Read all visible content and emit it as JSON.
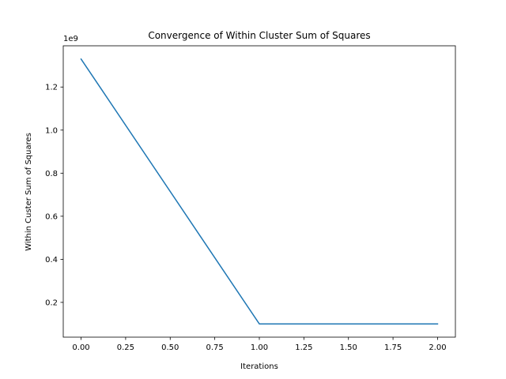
{
  "chart_data": {
    "type": "line",
    "title": "Convergence of Within Cluster Sum of Squares",
    "xlabel": "Iterations",
    "ylabel": "Within Custer Sum of Squares",
    "y_offset_label": "1e9",
    "series": [
      {
        "x": [
          0,
          1,
          2
        ],
        "values": [
          1.33,
          0.1,
          0.1
        ],
        "color": "#1f77b4"
      }
    ],
    "xlim": [
      -0.1,
      2.1
    ],
    "ylim": [
      0.0385,
      1.3915
    ],
    "xticks": [
      0.0,
      0.25,
      0.5,
      0.75,
      1.0,
      1.25,
      1.5,
      1.75,
      2.0
    ],
    "xtick_labels": [
      "0.00",
      "0.25",
      "0.50",
      "0.75",
      "1.00",
      "1.25",
      "1.50",
      "1.75",
      "2.00"
    ],
    "yticks": [
      0.2,
      0.4,
      0.6,
      0.8,
      1.0,
      1.2
    ],
    "ytick_labels": [
      "0.2",
      "0.4",
      "0.6",
      "0.8",
      "1.0",
      "1.2"
    ],
    "grid": false,
    "legend": "none"
  }
}
